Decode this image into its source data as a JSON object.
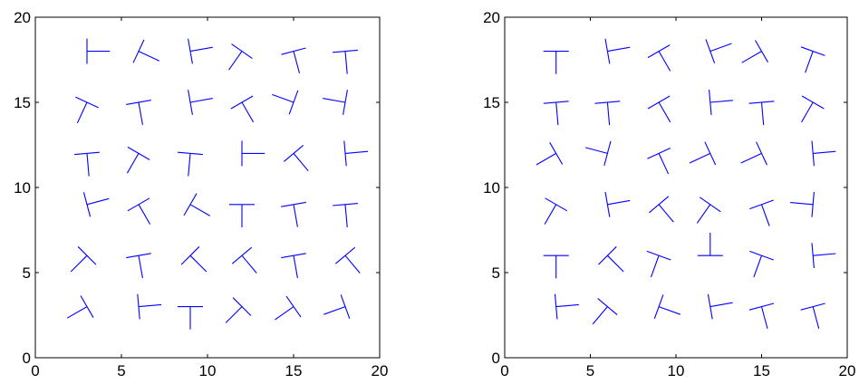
{
  "chart_data": [
    {
      "type": "scatter",
      "marker": "T-shaped line glyphs at varying orientations",
      "color": "#0000ff",
      "grid": false,
      "xlim": [
        0,
        20
      ],
      "ylim": [
        0,
        20
      ],
      "xticks": [
        0,
        5,
        10,
        15,
        20
      ],
      "yticks": [
        0,
        5,
        10,
        15,
        20
      ],
      "xtick_labels": [
        "0",
        "5",
        "10",
        "15",
        "20"
      ],
      "ytick_labels": [
        "0",
        "5",
        "10",
        "15",
        "20"
      ],
      "glyphs": [
        {
          "x": 3,
          "y": 18,
          "angle": 90
        },
        {
          "x": 6,
          "y": 18,
          "angle": 65
        },
        {
          "x": 9,
          "y": 18,
          "angle": 100
        },
        {
          "x": 12,
          "y": 18,
          "angle": -35
        },
        {
          "x": 15,
          "y": 18,
          "angle": 15
        },
        {
          "x": 18,
          "y": 18,
          "angle": 5
        },
        {
          "x": 3,
          "y": 15,
          "angle": -25
        },
        {
          "x": 6,
          "y": 15,
          "angle": 10
        },
        {
          "x": 9,
          "y": 15,
          "angle": 100
        },
        {
          "x": 12,
          "y": 15,
          "angle": 30
        },
        {
          "x": 15,
          "y": 15,
          "angle": -110
        },
        {
          "x": 18,
          "y": 15,
          "angle": -100
        },
        {
          "x": 3,
          "y": 12,
          "angle": 5
        },
        {
          "x": 6,
          "y": 12,
          "angle": -30
        },
        {
          "x": 9,
          "y": 12,
          "angle": -5
        },
        {
          "x": 12,
          "y": 12,
          "angle": 90
        },
        {
          "x": 15,
          "y": 12,
          "angle": 40
        },
        {
          "x": 18,
          "y": 12,
          "angle": 95
        },
        {
          "x": 3,
          "y": 9,
          "angle": 105
        },
        {
          "x": 6,
          "y": 9,
          "angle": 30
        },
        {
          "x": 9,
          "y": 9,
          "angle": 60
        },
        {
          "x": 12,
          "y": 9,
          "angle": 0
        },
        {
          "x": 15,
          "y": 9,
          "angle": 10
        },
        {
          "x": 18,
          "y": 9,
          "angle": 5
        },
        {
          "x": 3,
          "y": 6,
          "angle": -45
        },
        {
          "x": 6,
          "y": 6,
          "angle": 10
        },
        {
          "x": 9,
          "y": 6,
          "angle": 45
        },
        {
          "x": 12,
          "y": 6,
          "angle": 40
        },
        {
          "x": 15,
          "y": 6,
          "angle": 10
        },
        {
          "x": 18,
          "y": 6,
          "angle": 40
        },
        {
          "x": 3,
          "y": 3,
          "angle": -60
        },
        {
          "x": 6,
          "y": 3,
          "angle": 95
        },
        {
          "x": 9,
          "y": 3,
          "angle": 0
        },
        {
          "x": 12,
          "y": 3,
          "angle": -45
        },
        {
          "x": 15,
          "y": 3,
          "angle": -55
        },
        {
          "x": 18,
          "y": 3,
          "angle": -70
        }
      ]
    },
    {
      "type": "scatter",
      "marker": "T- and L-shaped line glyphs at varying orientations",
      "color": "#0000ff",
      "grid": false,
      "xlim": [
        0,
        20
      ],
      "ylim": [
        0,
        20
      ],
      "xticks": [
        0,
        5,
        10,
        15,
        20
      ],
      "yticks": [
        0,
        5,
        10,
        15,
        20
      ],
      "xtick_labels": [
        "0",
        "5",
        "10",
        "15",
        "20"
      ],
      "ytick_labels": [
        "0",
        "5",
        "10",
        "15",
        "20"
      ],
      "glyphs": [
        {
          "x": 3,
          "y": 18,
          "angle": 0
        },
        {
          "x": 6,
          "y": 18,
          "angle": 100
        },
        {
          "x": 9,
          "y": 18,
          "angle": 30
        },
        {
          "x": 12,
          "y": 18,
          "angle": 110
        },
        {
          "x": 15,
          "y": 18,
          "angle": -60
        },
        {
          "x": 18,
          "y": 18,
          "angle": -20
        },
        {
          "x": 3,
          "y": 15,
          "angle": 5
        },
        {
          "x": 6,
          "y": 15,
          "angle": 5
        },
        {
          "x": 9,
          "y": 15,
          "angle": 30
        },
        {
          "x": 12,
          "y": 15,
          "angle": 95
        },
        {
          "x": 15,
          "y": 15,
          "angle": 5
        },
        {
          "x": 18,
          "y": 15,
          "angle": -30
        },
        {
          "x": 3,
          "y": 12,
          "angle": -60
        },
        {
          "x": 6,
          "y": 12,
          "angle": -105
        },
        {
          "x": 9,
          "y": 12,
          "angle": 25
        },
        {
          "x": 12,
          "y": 12,
          "angle": -65
        },
        {
          "x": 15,
          "y": 12,
          "angle": -65
        },
        {
          "x": 18,
          "y": 12,
          "angle": 95
        },
        {
          "x": 3,
          "y": 9,
          "angle": -30
        },
        {
          "x": 6,
          "y": 9,
          "angle": 100
        },
        {
          "x": 9,
          "y": 9,
          "angle": 40
        },
        {
          "x": 12,
          "y": 9,
          "angle": -35
        },
        {
          "x": 15,
          "y": 9,
          "angle": 20
        },
        {
          "x": 18,
          "y": 9,
          "angle": -95
        },
        {
          "x": 3,
          "y": 6,
          "angle": 0
        },
        {
          "x": 6,
          "y": 6,
          "angle": 45
        },
        {
          "x": 9,
          "y": 6,
          "angle": -20
        },
        {
          "x": 12,
          "y": 6,
          "angle": 180
        },
        {
          "x": 15,
          "y": 6,
          "angle": -20
        },
        {
          "x": 18,
          "y": 6,
          "angle": 95
        },
        {
          "x": 3,
          "y": 3,
          "angle": 95
        },
        {
          "x": 6,
          "y": 3,
          "angle": -40
        },
        {
          "x": 9,
          "y": 3,
          "angle": 70
        },
        {
          "x": 12,
          "y": 3,
          "angle": 100
        },
        {
          "x": 15,
          "y": 3,
          "angle": 15
        },
        {
          "x": 18,
          "y": 3,
          "angle": 15
        }
      ]
    }
  ]
}
